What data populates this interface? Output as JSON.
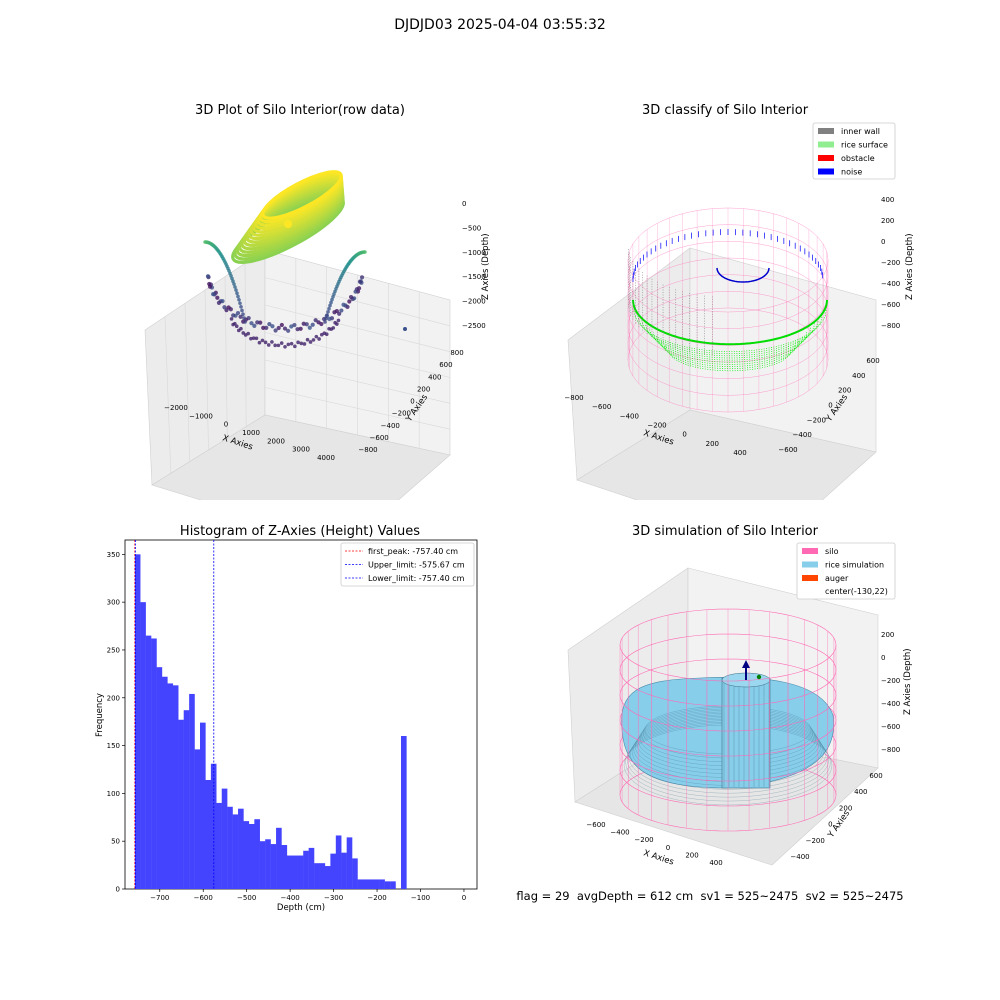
{
  "figure_title": "DJDJD03 2025-04-04 03:55:32",
  "footer": "flag = 29  avgDepth = 612 cm  sv1 = 525~2475  sv2 = 525~2475",
  "colors": {
    "inner_wall": "#808080",
    "rice_surface": "#90ee90",
    "obstacle": "#ff0000",
    "noise": "#0000ff",
    "silo": "#ff69b4",
    "rice_simulation": "#87ceeb",
    "auger": "#ff4500",
    "histogram_bar": "#4444ff",
    "first_peak_line": "#ff0000",
    "limit_lines": "#0000ff"
  },
  "chart_data": [
    {
      "type": "scatter",
      "title": "3D Plot of Silo Interior(row data)",
      "xlabel": "X Axies",
      "ylabel": "Y Axies",
      "zlabel": "Z Axies (Depth)",
      "x_ticks": [
        "−2000",
        "−1000",
        "0",
        "1000",
        "2000",
        "3000",
        "4000"
      ],
      "y_ticks": [
        "−800",
        "−600",
        "−400",
        "−200",
        "0",
        "200",
        "400",
        "600",
        "800"
      ],
      "z_ticks": [
        "0",
        "−500",
        "−1000",
        "−1500",
        "−2000",
        "−2500"
      ],
      "colormap": "viridis"
    },
    {
      "type": "scatter",
      "title": "3D classify of Silo Interior",
      "xlabel": "X Axies",
      "ylabel": "Y Axies",
      "zlabel": "Z Axies (Depth)",
      "x_ticks": [
        "−800",
        "−600",
        "−400",
        "−200",
        "0",
        "200",
        "400"
      ],
      "y_ticks": [
        "−600",
        "−400",
        "−200",
        "0",
        "200",
        "400",
        "600"
      ],
      "z_ticks": [
        "400",
        "200",
        "0",
        "−200",
        "−400",
        "−600",
        "−800"
      ],
      "legend": [
        "inner wall",
        "rice surface",
        "obstacle",
        "noise"
      ],
      "legend_position": "top-right"
    },
    {
      "type": "bar",
      "title": "Histogram of Z-Axies (Height) Values",
      "xlabel": "Depth (cm)",
      "ylabel": "Frequency",
      "xlim": [
        -780,
        30
      ],
      "ylim": [
        0,
        365
      ],
      "x_ticks": [
        -700,
        -600,
        -500,
        -400,
        -300,
        -200,
        -100,
        0
      ],
      "y_ticks": [
        0,
        50,
        100,
        150,
        200,
        250,
        300,
        350
      ],
      "bin_width": 12.5,
      "bin_start": -757.4,
      "values": [
        350,
        300,
        265,
        262,
        232,
        222,
        215,
        213,
        177,
        187,
        204,
        146,
        174,
        114,
        131,
        90,
        105,
        86,
        78,
        84,
        71,
        68,
        73,
        50,
        52,
        47,
        64,
        46,
        35,
        35,
        35,
        40,
        43,
        27,
        27,
        24,
        37,
        56,
        38,
        54,
        32,
        10,
        10,
        10,
        10,
        10,
        8,
        8,
        0,
        160
      ],
      "vlines": [
        {
          "label": "first_peak: -757.40 cm",
          "x": -757.4,
          "color": "#ff0000"
        },
        {
          "label": "Upper_limit: -575.67 cm",
          "x": -575.67,
          "color": "#0000ff"
        },
        {
          "label": "Lower_limit: -757.40 cm",
          "x": -757.4,
          "color": "#0000ff"
        }
      ],
      "legend_position": "top-right"
    },
    {
      "type": "area",
      "title": "3D simulation of Silo Interior",
      "xlabel": "X Axies",
      "ylabel": "Y Axies",
      "zlabel": "Z Axies (Depth)",
      "x_ticks": [
        "−600",
        "−400",
        "−200",
        "0",
        "200",
        "400"
      ],
      "y_ticks": [
        "−400",
        "−200",
        "0",
        "200",
        "400",
        "600"
      ],
      "z_ticks": [
        "200",
        "0",
        "−200",
        "−400",
        "−600",
        "−800"
      ],
      "legend": [
        "silo",
        "rice simulation",
        "auger",
        "center(-130,22)"
      ],
      "legend_position": "top-right"
    }
  ]
}
